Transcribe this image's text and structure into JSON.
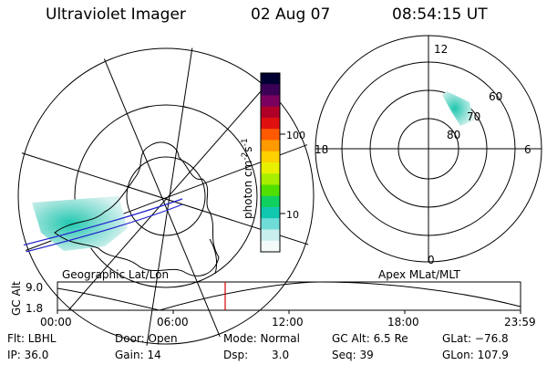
{
  "header": {
    "title": "Ultraviolet Imager",
    "date": "02 Aug 07",
    "time": "08:54:15 UT"
  },
  "left_map": {
    "caption": "Geographic Lat/Lon"
  },
  "colorbar": {
    "label": "photon cm",
    "label_exp1": "-2",
    "label_mid": "s",
    "label_exp2": "-1",
    "ticks": [
      "100",
      "10"
    ],
    "colors": [
      "#000033",
      "#3a0055",
      "#7a0060",
      "#b00028",
      "#e01010",
      "#ff5a00",
      "#ff9a00",
      "#ffd000",
      "#e8f000",
      "#a8ee00",
      "#50e000",
      "#10d060",
      "#10c8b0",
      "#70dcd8",
      "#c8eeee",
      "#f2fafa"
    ]
  },
  "right_dial": {
    "caption": "Apex MLat/MLT",
    "mlt_labels": {
      "top": "12",
      "left": "18",
      "right": "6",
      "bottom": "0"
    },
    "lat_labels": [
      "60",
      "70",
      "80"
    ]
  },
  "timeline": {
    "ylabel": "GC Alt",
    "yticks": [
      "9.0",
      "1.8"
    ],
    "xticks": [
      "00:00",
      "06:00",
      "12:00",
      "18:00",
      "23:59"
    ]
  },
  "footer": {
    "flt": "Flt: LBHL",
    "ip": "IP: 36.0",
    "door": "Door: Open",
    "gain": "Gain: 14",
    "mode": "Mode: Normal",
    "dsp_label": "Dsp:",
    "dsp_value": "3.0",
    "gcalt": "GC Alt: 6.5 Re",
    "seq": "Seq: 39",
    "glat": "GLat: −76.8",
    "glon": "GLon: 107.9"
  }
}
